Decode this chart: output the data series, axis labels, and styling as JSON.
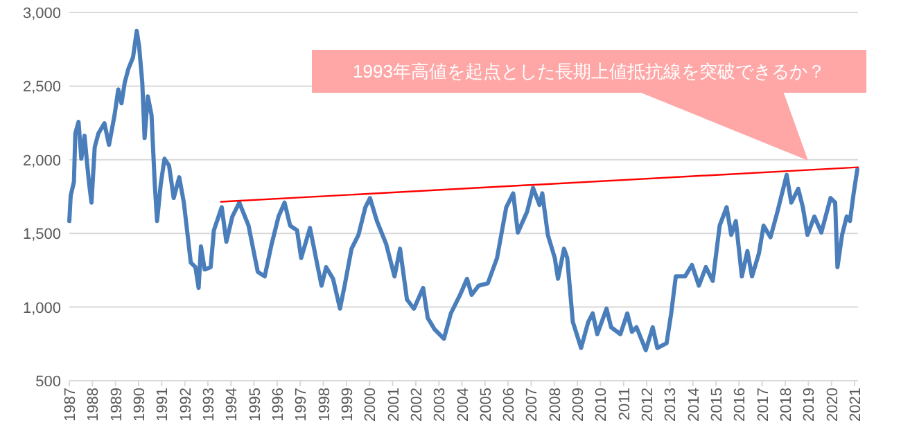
{
  "chart_data": {
    "type": "line",
    "xlim": [
      1987,
      2021.15
    ],
    "ylim": [
      500,
      3000
    ],
    "xticks": [
      1987,
      1988,
      1989,
      1990,
      1991,
      1992,
      1993,
      1994,
      1995,
      1996,
      1997,
      1998,
      1999,
      2000,
      2001,
      2002,
      2003,
      2004,
      2005,
      2006,
      2007,
      2008,
      2009,
      2010,
      2011,
      2012,
      2013,
      2014,
      2015,
      2016,
      2017,
      2018,
      2019,
      2020,
      2021
    ],
    "yticks": [
      {
        "value": 500,
        "label": "500"
      },
      {
        "value": 1000,
        "label": "1,000"
      },
      {
        "value": 1500,
        "label": "1,500"
      },
      {
        "value": 2000,
        "label": "2,000"
      },
      {
        "value": 2500,
        "label": "2,500"
      },
      {
        "value": 3000,
        "label": "3,000"
      }
    ],
    "grid": "y",
    "line_style": "solid",
    "annotations": [
      "1993年高値を起点とした長期上値抵抗線を突破できるか？"
    ],
    "series": [
      {
        "color": "#4a7ebb",
        "x": [
          1987.0,
          1987.06,
          1987.2,
          1987.26,
          1987.4,
          1987.52,
          1987.66,
          1987.76,
          1987.86,
          1987.96,
          1988.1,
          1988.26,
          1988.52,
          1988.72,
          1988.96,
          1989.12,
          1989.26,
          1989.4,
          1989.56,
          1989.76,
          1989.92,
          1990.02,
          1990.16,
          1990.26,
          1990.4,
          1990.56,
          1990.7,
          1990.8,
          1990.96,
          1991.12,
          1991.32,
          1991.52,
          1991.76,
          1991.96,
          1992.26,
          1992.46,
          1992.6,
          1992.7,
          1992.86,
          1993.12,
          1993.26,
          1993.6,
          1993.8,
          1994.06,
          1994.36,
          1994.76,
          1995.16,
          1995.46,
          1995.76,
          1996.06,
          1996.32,
          1996.56,
          1996.86,
          1997.04,
          1997.42,
          1997.92,
          1998.12,
          1998.42,
          1998.72,
          1998.92,
          1999.22,
          1999.52,
          1999.82,
          2000.02,
          2000.32,
          2000.72,
          2001.08,
          2001.32,
          2001.62,
          2001.92,
          2002.32,
          2002.52,
          2002.82,
          2003.22,
          2003.52,
          2003.92,
          2004.22,
          2004.42,
          2004.72,
          2005.12,
          2005.52,
          2005.92,
          2006.22,
          2006.42,
          2006.82,
          2007.08,
          2007.36,
          2007.48,
          2007.72,
          2008.02,
          2008.16,
          2008.42,
          2008.56,
          2008.8,
          2009.16,
          2009.46,
          2009.66,
          2009.86,
          2010.26,
          2010.46,
          2010.86,
          2011.16,
          2011.36,
          2011.56,
          2011.96,
          2012.26,
          2012.46,
          2012.86,
          2013.06,
          2013.26,
          2013.66,
          2013.96,
          2014.26,
          2014.56,
          2014.86,
          2015.16,
          2015.46,
          2015.66,
          2015.86,
          2016.12,
          2016.36,
          2016.56,
          2016.86,
          2017.06,
          2017.36,
          2017.66,
          2018.06,
          2018.26,
          2018.56,
          2018.76,
          2018.96,
          2019.26,
          2019.56,
          2019.96,
          2020.16,
          2020.26,
          2020.46,
          2020.66,
          2020.8,
          2020.96,
          2021.12
        ],
        "values": [
          1584,
          1756,
          1850,
          2179,
          2257,
          2007,
          2163,
          1991,
          1835,
          1709,
          2085,
          2179,
          2248,
          2101,
          2304,
          2477,
          2383,
          2524,
          2618,
          2696,
          2875,
          2774,
          2524,
          2148,
          2430,
          2304,
          1835,
          1584,
          1835,
          2007,
          1960,
          1740,
          1881,
          1709,
          1302,
          1271,
          1130,
          1412,
          1255,
          1271,
          1521,
          1678,
          1443,
          1615,
          1709,
          1553,
          1239,
          1208,
          1427,
          1615,
          1709,
          1553,
          1521,
          1333,
          1537,
          1145,
          1271,
          1192,
          989,
          1145,
          1396,
          1490,
          1678,
          1740,
          1584,
          1427,
          1208,
          1396,
          1051,
          989,
          1130,
          926,
          848,
          785,
          957,
          1083,
          1192,
          1083,
          1145,
          1161,
          1333,
          1678,
          1772,
          1506,
          1647,
          1809,
          1693,
          1772,
          1490,
          1333,
          1192,
          1396,
          1333,
          900,
          722,
          895,
          957,
          816,
          989,
          863,
          816,
          957,
          832,
          863,
          707,
          863,
          722,
          754,
          957,
          1208,
          1208,
          1286,
          1145,
          1271,
          1177,
          1553,
          1678,
          1490,
          1584,
          1208,
          1380,
          1208,
          1365,
          1553,
          1474,
          1647,
          1897,
          1709,
          1803,
          1678,
          1490,
          1615,
          1506,
          1740,
          1709,
          1271,
          1490,
          1615,
          1584,
          1772,
          1935
        ]
      },
      {
        "type": "line",
        "color": "#ff0000",
        "x": [
          1993.56,
          2021.15
        ],
        "values": [
          1715,
          1949
        ]
      }
    ]
  }
}
